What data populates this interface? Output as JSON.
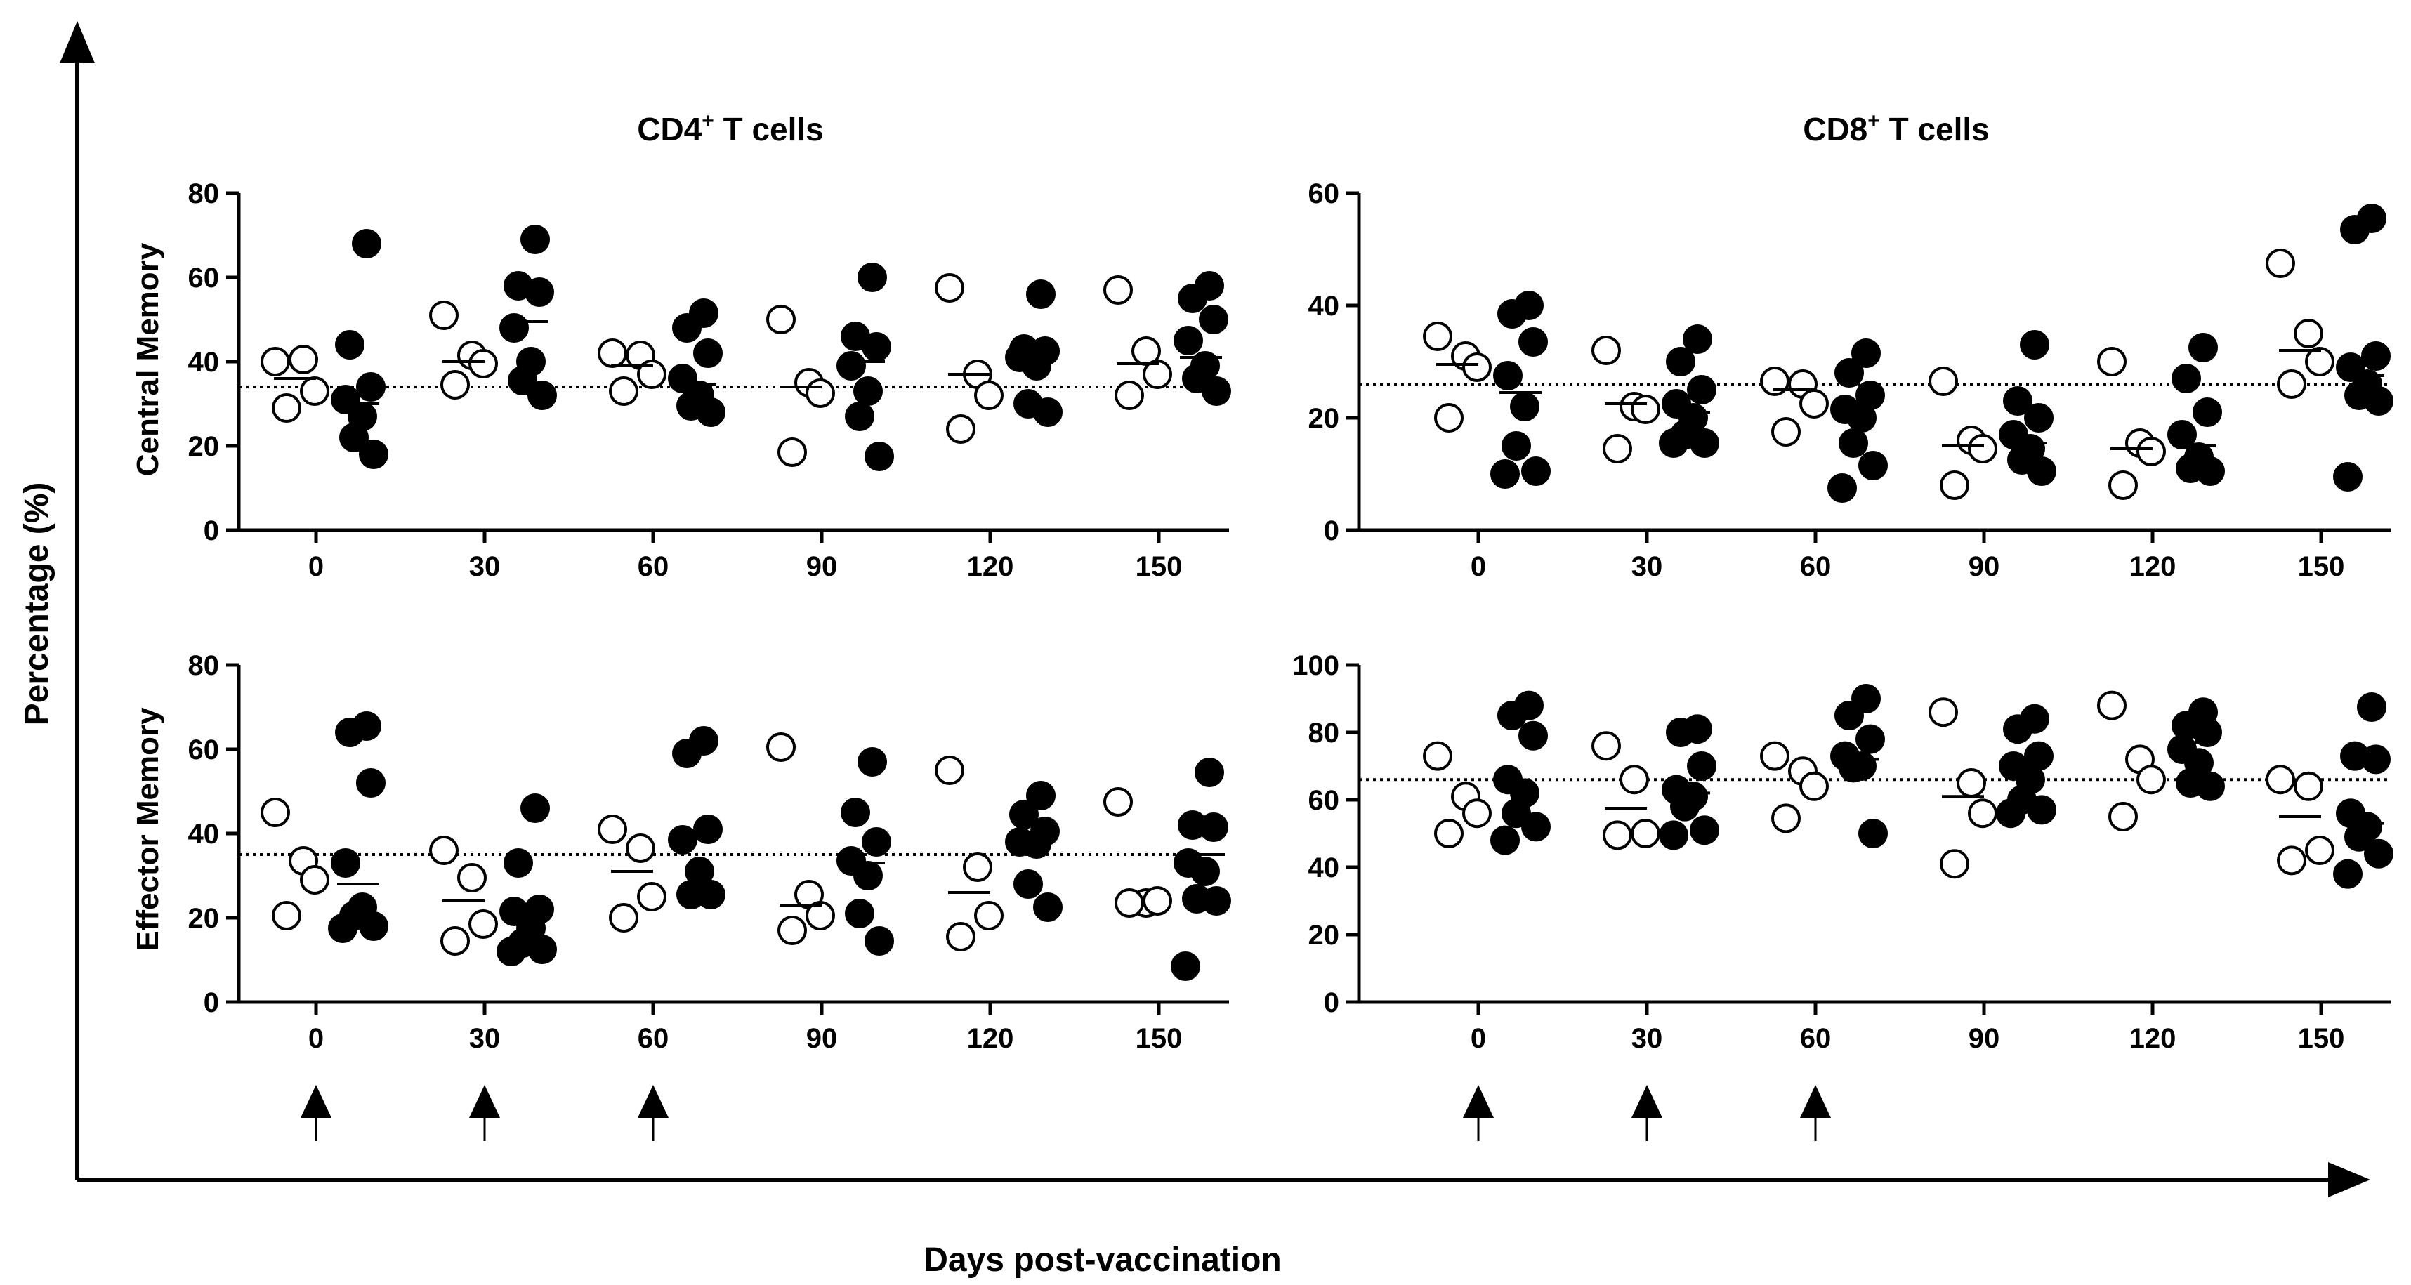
{
  "figure": {
    "ylabel": "Percentage (%)",
    "xlabel": "Days post-vaccination",
    "column_titles": [
      {
        "main": "CD4",
        "sup": "+",
        "rest": " T cells"
      },
      {
        "main": "CD8",
        "sup": "+",
        "rest": " T cells"
      }
    ],
    "row_titles": [
      "Central Memory",
      "Effector Memory"
    ],
    "vaccination_days": [
      0,
      30,
      60
    ],
    "colors": {
      "open_marker_fill": "#ffffff",
      "filled_marker": "#000000",
      "axis": "#000000"
    }
  },
  "chart_data": [
    {
      "type": "scatter",
      "title": "CD4+ T cells",
      "ylabel": "Central Memory",
      "xlabel": "",
      "ylim": [
        0,
        80
      ],
      "yticks": [
        0,
        20,
        40,
        60,
        80
      ],
      "categories": [
        "0",
        "30",
        "60",
        "90",
        "120",
        "150"
      ],
      "baseline": 34,
      "series": [
        {
          "name": "open",
          "points": [
            [
              40,
              40.5,
              33,
              29
            ],
            [
              51,
              41.5,
              39.5,
              34.5
            ],
            [
              42,
              41.5,
              37,
              33
            ],
            [
              50,
              35,
              32.5,
              18.5
            ],
            [
              57.5,
              37,
              32,
              24
            ],
            [
              57,
              42.5,
              37,
              32
            ]
          ],
          "means": [
            36,
            40,
            39,
            34,
            37,
            39.5
          ]
        },
        {
          "name": "filled",
          "points": [
            [
              68,
              44,
              34,
              31,
              27,
              22,
              18
            ],
            [
              69,
              58,
              56.5,
              48,
              40,
              35.5,
              32
            ],
            [
              51.5,
              48,
              42,
              36,
              32,
              29.5,
              28
            ],
            [
              60,
              46,
              43.5,
              39,
              33,
              27,
              17.5
            ],
            [
              56,
              43,
              42.5,
              41,
              39,
              30,
              28
            ],
            [
              58,
              55,
              50,
              45,
              39,
              36,
              33
            ]
          ],
          "means": [
            30,
            49.5,
            34.5,
            40,
            40.5,
            41
          ]
        }
      ]
    },
    {
      "type": "scatter",
      "title": "CD8+ T cells",
      "ylabel": "",
      "xlabel": "",
      "ylim": [
        0,
        60
      ],
      "yticks": [
        0,
        20,
        40,
        60
      ],
      "categories": [
        "0",
        "30",
        "60",
        "90",
        "120",
        "150"
      ],
      "baseline": 26,
      "series": [
        {
          "name": "open",
          "points": [
            [
              34.5,
              31,
              29,
              20
            ],
            [
              32,
              22,
              21.5,
              14.5
            ],
            [
              26.5,
              26,
              22.5,
              17.5
            ],
            [
              26.5,
              16,
              14.5,
              8
            ],
            [
              30,
              15.5,
              14,
              8
            ],
            [
              47.5,
              35,
              30,
              26
            ]
          ],
          "means": [
            29.5,
            22.5,
            25,
            15,
            14.5,
            32
          ]
        },
        {
          "name": "filled",
          "points": [
            [
              40,
              38.5,
              33.5,
              27.5,
              22,
              15,
              10.5,
              10
            ],
            [
              34,
              30,
              25,
              22.5,
              20,
              17,
              15.5,
              15.5
            ],
            [
              31.5,
              28,
              24,
              21.5,
              20,
              15.5,
              11.5,
              7.5
            ],
            [
              33,
              23,
              20,
              17,
              14.5,
              12.5,
              10.5
            ],
            [
              32.5,
              27,
              21,
              17,
              13,
              11,
              10.5
            ],
            [
              55.5,
              53.5,
              31,
              29,
              26,
              24,
              23,
              9.5
            ]
          ],
          "means": [
            24.5,
            21,
            22,
            15.5,
            15,
            27.5
          ]
        }
      ]
    },
    {
      "type": "scatter",
      "title": "",
      "ylabel": "Effector Memory",
      "xlabel": "",
      "ylim": [
        0,
        80
      ],
      "yticks": [
        0,
        20,
        40,
        60,
        80
      ],
      "categories": [
        "0",
        "30",
        "60",
        "90",
        "120",
        "150"
      ],
      "baseline": 35,
      "series": [
        {
          "name": "open",
          "points": [
            [
              45,
              33.5,
              29,
              20.5
            ],
            [
              36,
              29.5,
              18.5,
              14.5
            ],
            [
              41,
              36.5,
              25,
              20
            ],
            [
              60.5,
              25.5,
              20.5,
              17
            ],
            [
              55,
              32,
              20.5,
              15.5
            ],
            [
              47.5,
              23.5,
              24,
              23.5
            ]
          ],
          "means": [
            null,
            24,
            31,
            23,
            26,
            null
          ]
        },
        {
          "name": "filled",
          "points": [
            [
              65.5,
              64,
              52,
              33,
              22.5,
              20.5,
              18,
              17.5
            ],
            [
              46,
              33,
              22,
              21.5,
              17.5,
              14,
              12.5,
              12
            ],
            [
              62,
              59,
              41,
              38.5,
              31,
              25.5,
              25.5
            ],
            [
              57,
              45,
              38,
              33.5,
              30,
              21,
              14.5
            ],
            [
              49,
              44.5,
              40.5,
              38,
              37.5,
              28,
              22.5
            ],
            [
              54.5,
              42,
              41.5,
              33,
              31,
              24.5,
              24,
              8.5
            ]
          ],
          "means": [
            28,
            null,
            40,
            33,
            40,
            35
          ]
        }
      ]
    },
    {
      "type": "scatter",
      "title": "",
      "ylabel": "",
      "xlabel": "",
      "ylim": [
        0,
        100
      ],
      "yticks": [
        0,
        20,
        40,
        60,
        80,
        100
      ],
      "categories": [
        "0",
        "30",
        "60",
        "90",
        "120",
        "150"
      ],
      "baseline": 66,
      "series": [
        {
          "name": "open",
          "points": [
            [
              73,
              61,
              56,
              50
            ],
            [
              76,
              66,
              50,
              49.5
            ],
            [
              73,
              68.5,
              64,
              54.5
            ],
            [
              86,
              65,
              56,
              41
            ],
            [
              88,
              72,
              66,
              55
            ],
            [
              66,
              64,
              45,
              42
            ]
          ],
          "means": [
            null,
            57.5,
            null,
            61,
            null,
            55
          ]
        },
        {
          "name": "filled",
          "points": [
            [
              88,
              85,
              79,
              66,
              62,
              56,
              52,
              48
            ],
            [
              81,
              80,
              70,
              63,
              61,
              58,
              51,
              49.5
            ],
            [
              90,
              85,
              78,
              73,
              70,
              69.5,
              50
            ],
            [
              84,
              81,
              73,
              70,
              66,
              60,
              57,
              56
            ],
            [
              86,
              82,
              80,
              75,
              71,
              65,
              64
            ],
            [
              87.5,
              73,
              72,
              56,
              52,
              49,
              44,
              38
            ]
          ],
          "means": [
            null,
            62,
            72,
            null,
            77,
            53
          ]
        }
      ]
    }
  ]
}
